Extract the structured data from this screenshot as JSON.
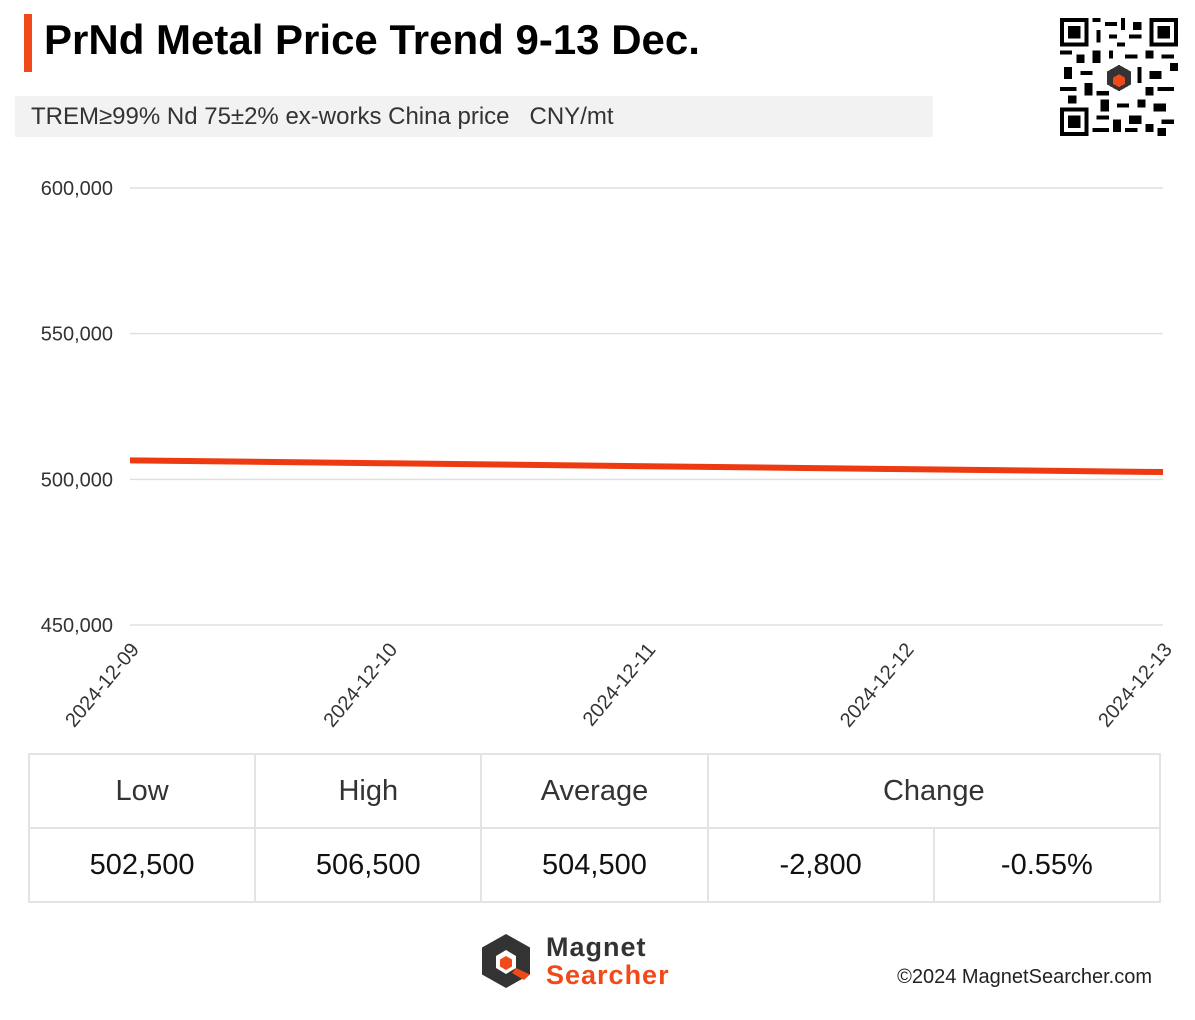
{
  "header": {
    "title": "PrNd Metal Price Trend 9-13 Dec.",
    "subtitle": "TREM≥99% Nd 75±2% ex-works China price   CNY/mt"
  },
  "colors": {
    "accent": "#f04a1a",
    "line": "#ee3a10",
    "grid": "#e0e0e0",
    "subtitle_bg": "#f2f2f2"
  },
  "chart_data": {
    "type": "line",
    "title": "PrNd Metal Price Trend 9-13 Dec.",
    "xlabel": "",
    "ylabel": "",
    "categories": [
      "2024-12-09",
      "2024-12-10",
      "2024-12-11",
      "2024-12-12",
      "2024-12-13"
    ],
    "series": [
      {
        "name": "PrNd Metal",
        "values": [
          506500,
          505500,
          504500,
          503500,
          502500
        ]
      }
    ],
    "ylim": [
      450000,
      600000
    ],
    "yticks": [
      450000,
      500000,
      550000,
      600000
    ],
    "ytick_labels": [
      "450,000",
      "500,000",
      "550,000",
      "600,000"
    ],
    "grid": true
  },
  "stats": {
    "headers": {
      "low": "Low",
      "high": "High",
      "average": "Average",
      "change": "Change"
    },
    "values": {
      "low": "502,500",
      "high": "506,500",
      "average": "504,500",
      "change_abs": "-2,800",
      "change_pct": "-0.55%"
    }
  },
  "footer": {
    "logo_line1": "Magnet",
    "logo_line2": "Searcher",
    "copyright": "©2024 MagnetSearcher.com"
  },
  "icons": {
    "qr": "qr-code-icon",
    "logo": "magnet-searcher-logo-icon"
  }
}
